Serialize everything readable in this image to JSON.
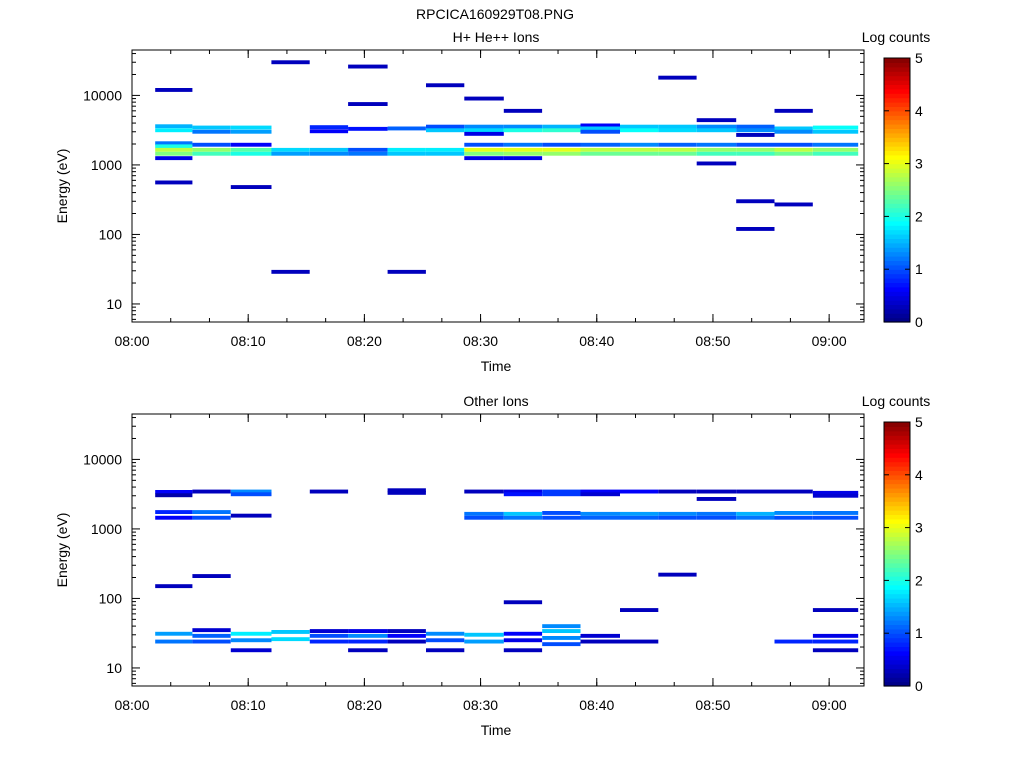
{
  "figure": {
    "title": "RPCICA160929T08.PNG"
  },
  "chart_data": [
    {
      "type": "heatmap",
      "title": "H+ He++ Ions",
      "xlabel": "Time",
      "ylabel": "Energy (eV)",
      "x_tick_labels": [
        "08:00",
        "08:10",
        "08:20",
        "08:30",
        "08:40",
        "08:50",
        "09:00"
      ],
      "xlim_minutes": [
        0,
        63
      ],
      "y_scale": "log",
      "ylim": [
        5.5,
        45000
      ],
      "y_tick_labels": [
        "10",
        "100",
        "1000",
        "10000"
      ],
      "y_tick_values": [
        10,
        100,
        1000,
        10000
      ],
      "colorbar": {
        "label": "Log counts",
        "range": [
          0,
          5
        ],
        "tick_labels": [
          "0",
          "1",
          "2",
          "3",
          "4",
          "5"
        ]
      },
      "cells": [
        [
          2,
          5.2,
          12000,
          0.3
        ],
        [
          2,
          5.2,
          3600,
          1.5
        ],
        [
          2,
          5.2,
          3150,
          1.8
        ],
        [
          2,
          5.2,
          2050,
          1.2
        ],
        [
          2,
          5.2,
          1850,
          2.0
        ],
        [
          2,
          5.2,
          1650,
          2.8
        ],
        [
          2,
          5.2,
          1450,
          2.5
        ],
        [
          2,
          5.2,
          1250,
          0.5
        ],
        [
          2,
          5.2,
          560,
          0.3
        ],
        [
          5.2,
          8.5,
          3450,
          1.6
        ],
        [
          5.2,
          8.5,
          3000,
          1.2
        ],
        [
          5.2,
          8.5,
          1950,
          1.0
        ],
        [
          5.2,
          8.5,
          1650,
          2.6
        ],
        [
          5.2,
          8.5,
          1450,
          2.2
        ],
        [
          8.5,
          12,
          3450,
          1.7
        ],
        [
          8.5,
          12,
          3000,
          1.4
        ],
        [
          8.5,
          12,
          1950,
          0.6
        ],
        [
          8.5,
          12,
          1650,
          2.3
        ],
        [
          8.5,
          12,
          1450,
          2.0
        ],
        [
          8.5,
          12,
          480,
          0.3
        ],
        [
          12,
          15.3,
          30000,
          0.3
        ],
        [
          12,
          15.3,
          1650,
          1.7
        ],
        [
          12,
          15.3,
          1450,
          1.4
        ],
        [
          12,
          15.3,
          29,
          0.3
        ],
        [
          15.3,
          18.6,
          3500,
          0.8
        ],
        [
          15.3,
          18.6,
          3050,
          0.6
        ],
        [
          15.3,
          18.6,
          1650,
          1.6
        ],
        [
          15.3,
          18.6,
          1450,
          1.3
        ],
        [
          18.6,
          22,
          26000,
          0.3
        ],
        [
          18.6,
          22,
          7500,
          0.3
        ],
        [
          18.6,
          22,
          3300,
          0.7
        ],
        [
          18.6,
          22,
          1650,
          1.0
        ],
        [
          18.6,
          22,
          1450,
          1.2
        ],
        [
          22,
          25.3,
          3350,
          1.1
        ],
        [
          22,
          25.3,
          1650,
          1.8
        ],
        [
          22,
          25.3,
          1450,
          1.6
        ],
        [
          22,
          25.3,
          29,
          0.3
        ],
        [
          25.3,
          28.6,
          14000,
          0.3
        ],
        [
          25.3,
          28.6,
          3550,
          1.0
        ],
        [
          25.3,
          28.6,
          3150,
          1.6
        ],
        [
          25.3,
          28.6,
          1650,
          1.8
        ],
        [
          25.3,
          28.6,
          1450,
          1.6
        ],
        [
          28.6,
          32,
          9000,
          0.3
        ],
        [
          28.6,
          32,
          3550,
          1.3
        ],
        [
          28.6,
          32,
          3150,
          1.7
        ],
        [
          28.6,
          32,
          2800,
          0.5
        ],
        [
          28.6,
          32,
          1950,
          1.0
        ],
        [
          28.6,
          32,
          1650,
          3.0
        ],
        [
          28.6,
          32,
          1450,
          2.5
        ],
        [
          28.6,
          32,
          1250,
          0.5
        ],
        [
          32,
          35.3,
          6000,
          0.3
        ],
        [
          32,
          35.3,
          3550,
          1.3
        ],
        [
          32,
          35.3,
          3150,
          2.0
        ],
        [
          32,
          35.3,
          1950,
          1.2
        ],
        [
          32,
          35.3,
          1650,
          3.0
        ],
        [
          32,
          35.3,
          1450,
          2.6
        ],
        [
          32,
          35.3,
          1250,
          0.5
        ],
        [
          35.3,
          38.6,
          3550,
          1.5
        ],
        [
          35.3,
          38.6,
          3150,
          2.1
        ],
        [
          35.3,
          38.6,
          1950,
          1.0
        ],
        [
          35.3,
          38.6,
          1650,
          3.0
        ],
        [
          35.3,
          38.6,
          1450,
          2.6
        ],
        [
          38.6,
          42,
          3700,
          0.6
        ],
        [
          38.6,
          42,
          3350,
          1.6
        ],
        [
          38.6,
          42,
          3000,
          1.0
        ],
        [
          38.6,
          42,
          1950,
          1.1
        ],
        [
          38.6,
          42,
          1650,
          2.8
        ],
        [
          38.6,
          42,
          1450,
          2.4
        ],
        [
          42,
          45.3,
          3550,
          1.6
        ],
        [
          42,
          45.3,
          3150,
          1.9
        ],
        [
          42,
          45.3,
          1950,
          1.3
        ],
        [
          42,
          45.3,
          1650,
          2.8
        ],
        [
          42,
          45.3,
          1450,
          2.4
        ],
        [
          45.3,
          48.6,
          18000,
          0.3
        ],
        [
          45.3,
          48.6,
          3550,
          1.6
        ],
        [
          45.3,
          48.6,
          3150,
          1.7
        ],
        [
          45.3,
          48.6,
          1950,
          1.1
        ],
        [
          45.3,
          48.6,
          1650,
          2.8
        ],
        [
          45.3,
          48.6,
          1450,
          2.4
        ],
        [
          48.6,
          52,
          4400,
          0.3
        ],
        [
          48.6,
          52,
          3550,
          1.3
        ],
        [
          48.6,
          52,
          3150,
          1.6
        ],
        [
          48.6,
          52,
          1950,
          1.2
        ],
        [
          48.6,
          52,
          1650,
          2.6
        ],
        [
          48.6,
          52,
          1450,
          2.2
        ],
        [
          48.6,
          52,
          1050,
          0.3
        ],
        [
          52,
          55.3,
          3550,
          1.1
        ],
        [
          52,
          55.3,
          3150,
          1.3
        ],
        [
          52,
          55.3,
          2700,
          0.3
        ],
        [
          52,
          55.3,
          1950,
          1.0
        ],
        [
          52,
          55.3,
          1650,
          2.6
        ],
        [
          52,
          55.3,
          1450,
          2.2
        ],
        [
          52,
          55.3,
          300,
          0.3
        ],
        [
          52,
          55.3,
          120,
          0.3
        ],
        [
          55.3,
          58.6,
          6000,
          0.3
        ],
        [
          55.3,
          58.6,
          3350,
          1.6
        ],
        [
          55.3,
          58.6,
          3000,
          1.3
        ],
        [
          55.3,
          58.6,
          1950,
          1.0
        ],
        [
          55.3,
          58.6,
          1650,
          2.8
        ],
        [
          55.3,
          58.6,
          1450,
          2.4
        ],
        [
          55.3,
          58.6,
          270,
          0.3
        ],
        [
          58.6,
          62.5,
          3450,
          1.9
        ],
        [
          58.6,
          62.5,
          3000,
          1.6
        ],
        [
          58.6,
          62.5,
          1950,
          1.2
        ],
        [
          58.6,
          62.5,
          1650,
          2.6
        ],
        [
          58.6,
          62.5,
          1450,
          2.2
        ]
      ]
    },
    {
      "type": "heatmap",
      "title": "Other Ions",
      "xlabel": "Time",
      "ylabel": "Energy (eV)",
      "x_tick_labels": [
        "08:00",
        "08:10",
        "08:20",
        "08:30",
        "08:40",
        "08:50",
        "09:00"
      ],
      "xlim_minutes": [
        0,
        63
      ],
      "y_scale": "log",
      "ylim": [
        5.5,
        45000
      ],
      "y_tick_labels": [
        "10",
        "100",
        "1000",
        "10000"
      ],
      "y_tick_values": [
        10,
        100,
        1000,
        10000
      ],
      "colorbar": {
        "label": "Log counts",
        "range": [
          0,
          5
        ],
        "tick_labels": [
          "0",
          "1",
          "2",
          "3",
          "4",
          "5"
        ]
      },
      "cells": [
        [
          2,
          5.2,
          3400,
          0.6
        ],
        [
          2,
          5.2,
          3050,
          0.2
        ],
        [
          2,
          5.2,
          1750,
          0.8
        ],
        [
          2,
          5.2,
          1450,
          0.6
        ],
        [
          2,
          5.2,
          150,
          0.3
        ],
        [
          2,
          5.2,
          31,
          1.4
        ],
        [
          2,
          5.2,
          24,
          1.2
        ],
        [
          5.2,
          8.5,
          3450,
          0.3
        ],
        [
          5.2,
          8.5,
          1750,
          1.2
        ],
        [
          5.2,
          8.5,
          1450,
          1.0
        ],
        [
          5.2,
          8.5,
          210,
          0.3
        ],
        [
          5.2,
          8.5,
          35,
          0.4
        ],
        [
          5.2,
          8.5,
          29,
          1.1
        ],
        [
          5.2,
          8.5,
          24,
          1.0
        ],
        [
          8.5,
          12,
          3450,
          1.3
        ],
        [
          8.5,
          12,
          3150,
          1.0
        ],
        [
          8.5,
          12,
          1550,
          0.3
        ],
        [
          8.5,
          12,
          31,
          1.8
        ],
        [
          8.5,
          12,
          25,
          1.3
        ],
        [
          8.5,
          12,
          18,
          0.4
        ],
        [
          12,
          15.3,
          33,
          1.6
        ],
        [
          12,
          15.3,
          26,
          1.7
        ],
        [
          15.3,
          18.6,
          3450,
          0.3
        ],
        [
          15.3,
          18.6,
          34,
          0.4
        ],
        [
          15.3,
          18.6,
          29,
          1.0
        ],
        [
          15.3,
          18.6,
          24,
          0.8
        ],
        [
          18.6,
          22,
          34,
          0.5
        ],
        [
          18.6,
          22,
          29,
          1.3
        ],
        [
          18.6,
          22,
          24,
          0.8
        ],
        [
          18.6,
          22,
          18,
          0.3
        ],
        [
          22,
          25.3,
          3600,
          0.3
        ],
        [
          22,
          25.3,
          3300,
          0.3
        ],
        [
          22,
          25.3,
          34,
          0.3
        ],
        [
          22,
          25.3,
          29,
          0.6
        ],
        [
          22,
          25.3,
          24,
          0.3
        ],
        [
          25.3,
          28.6,
          31,
          1.3
        ],
        [
          25.3,
          28.6,
          25,
          1.0
        ],
        [
          25.3,
          28.6,
          18,
          0.3
        ],
        [
          28.6,
          32,
          3450,
          0.3
        ],
        [
          28.6,
          32,
          1650,
          1.2
        ],
        [
          28.6,
          32,
          1450,
          1.0
        ],
        [
          28.6,
          32,
          30,
          1.6
        ],
        [
          28.6,
          32,
          24,
          1.4
        ],
        [
          32,
          35.3,
          3450,
          0.5
        ],
        [
          32,
          35.3,
          3150,
          0.7
        ],
        [
          32,
          35.3,
          1650,
          1.6
        ],
        [
          32,
          35.3,
          1450,
          1.2
        ],
        [
          32,
          35.3,
          88,
          0.3
        ],
        [
          32,
          35.3,
          31,
          0.6
        ],
        [
          32,
          35.3,
          25,
          0.5
        ],
        [
          32,
          35.3,
          18,
          0.3
        ],
        [
          35.3,
          38.6,
          3450,
          0.9
        ],
        [
          35.3,
          38.6,
          3150,
          0.9
        ],
        [
          35.3,
          38.6,
          1700,
          1.0
        ],
        [
          35.3,
          38.6,
          1450,
          1.0
        ],
        [
          35.3,
          38.6,
          40,
          1.3
        ],
        [
          35.3,
          38.6,
          34,
          1.6
        ],
        [
          35.3,
          38.6,
          27,
          1.3
        ],
        [
          35.3,
          38.6,
          22,
          1.0
        ],
        [
          38.6,
          42,
          3450,
          0.6
        ],
        [
          38.6,
          42,
          3150,
          0.4
        ],
        [
          38.6,
          42,
          1650,
          1.3
        ],
        [
          38.6,
          42,
          1450,
          1.1
        ],
        [
          38.6,
          42,
          29,
          0.4
        ],
        [
          38.6,
          42,
          24,
          0.3
        ],
        [
          42,
          45.3,
          3450,
          0.6
        ],
        [
          42,
          45.3,
          1650,
          1.4
        ],
        [
          42,
          45.3,
          1450,
          1.1
        ],
        [
          42,
          45.3,
          68,
          0.3
        ],
        [
          42,
          45.3,
          24,
          0.3
        ],
        [
          45.3,
          48.6,
          3450,
          0.3
        ],
        [
          45.3,
          48.6,
          1650,
          1.3
        ],
        [
          45.3,
          48.6,
          1450,
          1.0
        ],
        [
          45.3,
          48.6,
          220,
          0.3
        ],
        [
          48.6,
          52,
          3450,
          0.3
        ],
        [
          48.6,
          52,
          2700,
          0.3
        ],
        [
          48.6,
          52,
          1650,
          1.2
        ],
        [
          48.6,
          52,
          1450,
          1.0
        ],
        [
          52,
          55.3,
          3450,
          0.3
        ],
        [
          52,
          55.3,
          1650,
          1.5
        ],
        [
          52,
          55.3,
          1450,
          1.2
        ],
        [
          55.3,
          58.6,
          3450,
          0.3
        ],
        [
          55.3,
          58.6,
          1700,
          1.3
        ],
        [
          55.3,
          58.6,
          1450,
          1.0
        ],
        [
          55.3,
          58.6,
          24,
          0.8
        ],
        [
          58.6,
          62.5,
          3300,
          0.5
        ],
        [
          58.6,
          62.5,
          3000,
          0.4
        ],
        [
          58.6,
          62.5,
          1700,
          1.2
        ],
        [
          58.6,
          62.5,
          1450,
          1.0
        ],
        [
          58.6,
          62.5,
          68,
          0.3
        ],
        [
          58.6,
          62.5,
          29,
          0.5
        ],
        [
          58.6,
          62.5,
          24,
          0.8
        ],
        [
          58.6,
          62.5,
          18,
          0.3
        ]
      ]
    }
  ]
}
